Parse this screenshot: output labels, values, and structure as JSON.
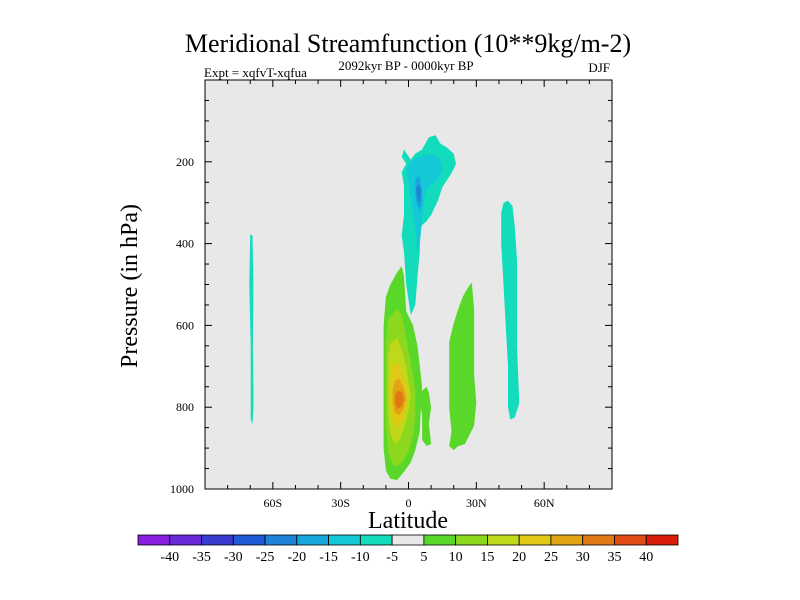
{
  "chart_data": {
    "type": "heatmap",
    "title": "Meridional Streamfunction (10**9kg/m-2)",
    "subtitle_left": "Expt = xqfvT-xqfua",
    "subtitle_center": "2092kyr BP - 0000kyr BP",
    "subtitle_right": "DJF",
    "xlabel": "Latitude",
    "ylabel": "Pressure (in hPa)",
    "xlim": [
      -90,
      90
    ],
    "ylim": [
      0,
      1000
    ],
    "y_inverted": true,
    "x_ticks": [
      {
        "value": -60,
        "label": "60S"
      },
      {
        "value": -30,
        "label": "30S"
      },
      {
        "value": 0,
        "label": "0"
      },
      {
        "value": 30,
        "label": "30N"
      },
      {
        "value": 60,
        "label": "60N"
      }
    ],
    "y_ticks": [
      {
        "value": 200,
        "label": "200"
      },
      {
        "value": 400,
        "label": "400"
      },
      {
        "value": 600,
        "label": "600"
      },
      {
        "value": 800,
        "label": "800"
      },
      {
        "value": 1000,
        "label": "1000"
      }
    ],
    "colorbar": {
      "labels": [
        "-40",
        "-35",
        "-30",
        "-25",
        "-20",
        "-15",
        "-10",
        "-5",
        "5",
        "10",
        "15",
        "20",
        "25",
        "30",
        "35",
        "40"
      ],
      "colors": [
        "#8a1ee0",
        "#6a2ad8",
        "#3a3ad0",
        "#1f5ad8",
        "#1f84d8",
        "#16a8dc",
        "#14c8d8",
        "#12dcbc",
        "#e8e8e8",
        "#5ad82a",
        "#8cd81e",
        "#c0d81a",
        "#e0c814",
        "#e0a414",
        "#e07814",
        "#e04c14",
        "#d81e0a"
      ]
    },
    "contours": [
      {
        "name": "tropical-upper-cell",
        "level": -5,
        "polygon": [
          [
            -2,
            170
          ],
          [
            1,
            195
          ],
          [
            3,
            180
          ],
          [
            6,
            170
          ],
          [
            9,
            140
          ],
          [
            12,
            135
          ],
          [
            14,
            155
          ],
          [
            17,
            165
          ],
          [
            20,
            180
          ],
          [
            21,
            205
          ],
          [
            19,
            228
          ],
          [
            15,
            262
          ],
          [
            13,
            295
          ],
          [
            10,
            330
          ],
          [
            8,
            345
          ],
          [
            6,
            355
          ],
          [
            5,
            370
          ],
          [
            5,
            420
          ],
          [
            4,
            480
          ],
          [
            3,
            550
          ],
          [
            1,
            575
          ],
          [
            -1,
            500
          ],
          [
            -2,
            420
          ],
          [
            -3,
            380
          ],
          [
            -2,
            330
          ],
          [
            -2,
            260
          ],
          [
            -3,
            225
          ],
          [
            -1,
            205
          ],
          [
            -3,
            188
          ]
        ]
      },
      {
        "name": "tropical-upper-cell-core-1",
        "level": -10,
        "polygon": [
          [
            -1,
            215
          ],
          [
            1,
            200
          ],
          [
            3,
            192
          ],
          [
            6,
            185
          ],
          [
            9,
            182
          ],
          [
            12,
            184
          ],
          [
            14,
            196
          ],
          [
            15,
            215
          ],
          [
            13,
            245
          ],
          [
            10,
            255
          ],
          [
            8,
            270
          ],
          [
            7,
            290
          ],
          [
            6,
            340
          ],
          [
            5,
            400
          ],
          [
            4,
            420
          ],
          [
            3,
            360
          ],
          [
            1,
            290
          ],
          [
            0,
            250
          ]
        ]
      },
      {
        "name": "tropical-upper-cell-core-2",
        "level": -15,
        "polygon": [
          [
            3,
            245
          ],
          [
            4,
            235
          ],
          [
            5,
            238
          ],
          [
            6,
            270
          ],
          [
            6,
            300
          ],
          [
            5,
            320
          ],
          [
            4,
            310
          ],
          [
            3,
            280
          ]
        ]
      },
      {
        "name": "tropical-upper-cell-core-3",
        "level": -20,
        "polygon": [
          [
            3.5,
            262
          ],
          [
            4.5,
            255
          ],
          [
            5.5,
            265
          ],
          [
            5.3,
            295
          ],
          [
            4.2,
            298
          ],
          [
            3.5,
            282
          ]
        ]
      },
      {
        "name": "sh-subtropical-cell",
        "level": 5,
        "polygon": [
          [
            -10,
            530
          ],
          [
            -8,
            500
          ],
          [
            -5,
            470
          ],
          [
            -3,
            455
          ],
          [
            -2,
            480
          ],
          [
            -1,
            565
          ],
          [
            2,
            600
          ],
          [
            4,
            650
          ],
          [
            5,
            700
          ],
          [
            6,
            750
          ],
          [
            5.5,
            800
          ],
          [
            5,
            860
          ],
          [
            3,
            905
          ],
          [
            1,
            935
          ],
          [
            -2,
            958
          ],
          [
            -5,
            978
          ],
          [
            -8,
            975
          ],
          [
            -10,
            955
          ],
          [
            -11,
            900
          ],
          [
            -11,
            800
          ],
          [
            -11,
            700
          ],
          [
            -11,
            600
          ]
        ]
      },
      {
        "name": "sh-subtropical-cell-inner-1",
        "level": 10,
        "polygon": [
          [
            -9,
            585
          ],
          [
            -5,
            560
          ],
          [
            -3,
            575
          ],
          [
            0,
            660
          ],
          [
            2,
            720
          ],
          [
            3,
            760
          ],
          [
            3,
            820
          ],
          [
            2,
            870
          ],
          [
            0,
            910
          ],
          [
            -3,
            935
          ],
          [
            -5,
            945
          ],
          [
            -7,
            940
          ],
          [
            -9,
            910
          ],
          [
            -10,
            840
          ],
          [
            -10,
            740
          ],
          [
            -10,
            650
          ]
        ]
      },
      {
        "name": "sh-subtropical-cell-inner-2",
        "level": 15,
        "polygon": [
          [
            -8,
            645
          ],
          [
            -5,
            630
          ],
          [
            -3,
            660
          ],
          [
            -1,
            700
          ],
          [
            0,
            740
          ],
          [
            1,
            770
          ],
          [
            0,
            810
          ],
          [
            -2,
            850
          ],
          [
            -4,
            880
          ],
          [
            -6,
            890
          ],
          [
            -8,
            865
          ],
          [
            -9,
            810
          ],
          [
            -9,
            730
          ],
          [
            -9,
            680
          ]
        ]
      },
      {
        "name": "sh-subtropical-cell-inner-3",
        "level": 20,
        "polygon": [
          [
            -7,
            700
          ],
          [
            -5,
            690
          ],
          [
            -3,
            715
          ],
          [
            -1,
            745
          ],
          [
            0,
            775
          ],
          [
            -1,
            805
          ],
          [
            -3,
            835
          ],
          [
            -5,
            850
          ],
          [
            -7,
            830
          ],
          [
            -8,
            790
          ],
          [
            -8,
            740
          ]
        ]
      },
      {
        "name": "sh-subtropical-cell-inner-4",
        "level": 25,
        "polygon": [
          [
            -6,
            735
          ],
          [
            -4,
            730
          ],
          [
            -2,
            755
          ],
          [
            -1,
            778
          ],
          [
            -2,
            800
          ],
          [
            -4,
            820
          ],
          [
            -6,
            815
          ],
          [
            -7,
            790
          ],
          [
            -7,
            760
          ]
        ]
      },
      {
        "name": "sh-subtropical-cell-core",
        "level": 30,
        "polygon": [
          [
            -5,
            760
          ],
          [
            -3,
            762
          ],
          [
            -2,
            780
          ],
          [
            -3,
            798
          ],
          [
            -5,
            805
          ],
          [
            -6,
            790
          ],
          [
            -6,
            772
          ]
        ]
      },
      {
        "name": "equatorial-cell",
        "level": 5,
        "polygon": [
          [
            6,
            760
          ],
          [
            8,
            750
          ],
          [
            9,
            765
          ],
          [
            10,
            800
          ],
          [
            9,
            840
          ],
          [
            10,
            890
          ],
          [
            8,
            895
          ],
          [
            6,
            880
          ],
          [
            6,
            820
          ],
          [
            5,
            790
          ]
        ]
      },
      {
        "name": "nh-midlatitude-cell",
        "level": 5,
        "polygon": [
          [
            18,
            640
          ],
          [
            20,
            595
          ],
          [
            22,
            560
          ],
          [
            24,
            530
          ],
          [
            26,
            510
          ],
          [
            28,
            495
          ],
          [
            29,
            560
          ],
          [
            29,
            640
          ],
          [
            29,
            720
          ],
          [
            30,
            790
          ],
          [
            29,
            845
          ],
          [
            25,
            890
          ],
          [
            22,
            895
          ],
          [
            20,
            905
          ],
          [
            18,
            895
          ],
          [
            19,
            860
          ],
          [
            18,
            800
          ],
          [
            18,
            700
          ]
        ]
      },
      {
        "name": "nh-high-latitude-cell",
        "level": -5,
        "polygon": [
          [
            41,
            325
          ],
          [
            42,
            300
          ],
          [
            44,
            295
          ],
          [
            46,
            308
          ],
          [
            47,
            360
          ],
          [
            48,
            440
          ],
          [
            48,
            550
          ],
          [
            48,
            650
          ],
          [
            49,
            790
          ],
          [
            47,
            825
          ],
          [
            45,
            830
          ],
          [
            44,
            800
          ],
          [
            44,
            700
          ],
          [
            43,
            600
          ],
          [
            42,
            500
          ],
          [
            41,
            400
          ]
        ]
      },
      {
        "name": "sh-polar-cell",
        "level": -5,
        "polygon": [
          [
            -70,
            378
          ],
          [
            -69,
            380
          ],
          [
            -68.6,
            500
          ],
          [
            -68.8,
            650
          ],
          [
            -68.5,
            790
          ],
          [
            -69,
            840
          ],
          [
            -69.8,
            830
          ],
          [
            -69.8,
            650
          ],
          [
            -70.4,
            500
          ]
        ]
      }
    ]
  }
}
